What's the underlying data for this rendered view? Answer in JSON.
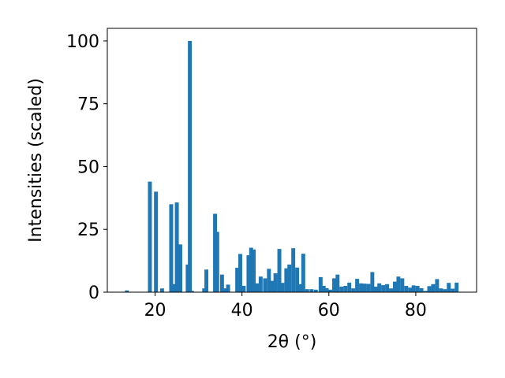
{
  "chart_data": {
    "type": "bar",
    "xlabel": "2θ (°)",
    "ylabel": "Intensities (scaled)",
    "xlim": [
      9,
      94
    ],
    "ylim": [
      0,
      105
    ],
    "xticks": [
      20,
      40,
      60,
      80
    ],
    "yticks": [
      0,
      25,
      50,
      75,
      100
    ],
    "bar_width": 0.9,
    "grid": false,
    "legend": "none",
    "colors": {
      "bar": "#1f77b4",
      "axis": "#000000",
      "background": "#ffffff"
    },
    "x": [
      13.5,
      18.8,
      20.2,
      21.6,
      23.7,
      24.4,
      25.0,
      25.8,
      27.5,
      28.0,
      28.5,
      31.3,
      31.8,
      33.8,
      34.3,
      35.4,
      36.0,
      36.8,
      38.9,
      39.6,
      40.4,
      41.5,
      42.1,
      42.7,
      43.5,
      44.3,
      45.3,
      46.2,
      46.9,
      47.7,
      48.6,
      49.3,
      50.2,
      50.9,
      51.8,
      52.7,
      53.4,
      54.1,
      55.0,
      56.0,
      57.0,
      58.1,
      58.8,
      59.5,
      60.3,
      61.2,
      62.0,
      62.9,
      63.8,
      64.7,
      65.6,
      66.5,
      67.4,
      68.2,
      69.1,
      70.0,
      70.8,
      71.6,
      72.5,
      73.4,
      74.3,
      75.2,
      76.0,
      76.9,
      77.8,
      78.7,
      79.5,
      80.4,
      81.3,
      82.2,
      83.1,
      84.0,
      84.9,
      85.8,
      86.7,
      87.6,
      88.5,
      89.4
    ],
    "values": [
      0.7,
      44,
      40,
      1.5,
      35,
      3.2,
      35.7,
      19,
      11,
      100,
      0.5,
      1.5,
      9,
      31.2,
      24,
      7,
      1.5,
      3,
      9.7,
      15.2,
      2.5,
      14.7,
      17.7,
      17,
      3.5,
      6.2,
      5.5,
      9.3,
      4.5,
      7.5,
      17.2,
      3.7,
      9.5,
      11,
      17.5,
      9.8,
      3.2,
      15.3,
      1.2,
      1.2,
      1.0,
      6.0,
      2.5,
      1.6,
      1.0,
      5.5,
      7.0,
      2.2,
      2.5,
      3.8,
      1.5,
      5.3,
      3.5,
      3.4,
      3.3,
      8.0,
      2.2,
      3.5,
      2.8,
      3.2,
      1.5,
      4.2,
      6.2,
      5.5,
      2.5,
      1.8,
      2.7,
      2.5,
      1.6,
      0.5,
      2.4,
      3.2,
      5.2,
      1.5,
      1.2,
      3.7,
      1.4,
      3.8
    ]
  }
}
